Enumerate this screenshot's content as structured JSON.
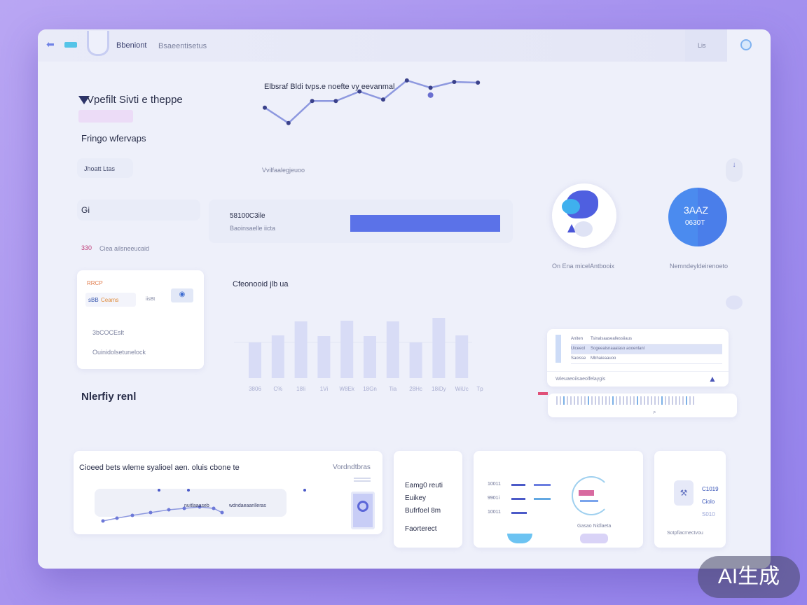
{
  "header": {
    "back_icon": "arrow-left-icon",
    "brand": "Bbeniont",
    "nav_label": "Bsaeentisetus",
    "right_label": "Lis",
    "avatar_icon": "user-circle-icon"
  },
  "left_panel": {
    "title": "Vpefilt Sivti e theppe",
    "subtitle": "Fringo wfervaps",
    "filter_label": "Jhoatt Ltas",
    "stat_label": "Gi",
    "tag_value": "330",
    "tag_text": "Ciea ailsneeucaid"
  },
  "line_chart": {
    "title": "Elbsraf Bldi tvps.e noefte vy eevanmal",
    "footer": "Vvilfaalegjeuoo"
  },
  "progress": {
    "value_label": "58100C3ile",
    "caption": "Baoinsaelle iicta",
    "fill_percent": 100,
    "color": "#5b72e8"
  },
  "mini_card": {
    "badge": "RRCP",
    "row_label": "sBB",
    "row_accent": "Ceams",
    "row_small": "iisBt",
    "button_icon": "chat-icon",
    "item1": "3bCOCEslt",
    "item2": "Ouinidolsetunelock"
  },
  "section_label": "Nlerfiy renl",
  "bar_chart_title": "Cfeonooid jlb ua",
  "chart_data": [
    {
      "type": "line",
      "title": "Elbsraf Bldi tvps.e noefte vy eevanmal",
      "xlabel": "Vvilfaalegjeuoo",
      "x": [
        1,
        2,
        3,
        4,
        5,
        6,
        7,
        8,
        9,
        10
      ],
      "values": [
        46,
        25,
        55,
        55,
        68,
        57,
        83,
        73,
        81,
        80
      ],
      "extra_point": {
        "x": 8,
        "y": 63
      },
      "color": "#8d98df"
    },
    {
      "type": "bar",
      "title": "Cfeonooid jlb ua",
      "categories": [
        "3806",
        "C%",
        "18Ii",
        "1Vi",
        "W8Ek",
        "18Gn",
        "Tia",
        "28Hc",
        "18iDy",
        "WiUc"
      ],
      "values": [
        51,
        61,
        81,
        60,
        82,
        60,
        81,
        51,
        86,
        61
      ],
      "extra_tick": "Tp",
      "color": "#d8dcf6"
    }
  ],
  "donut_left": {
    "caption": "On Ena micelAntbooix"
  },
  "donut_right": {
    "value": "3AAZ",
    "sub": "0630T",
    "caption": "Nemndeyldeirenoeto",
    "color": "#4a88ef"
  },
  "table_card": {
    "rows": [
      {
        "k": "Aniten",
        "v": "Tsinalsaaseallessiiaus"
      },
      {
        "k": "Uiceeol",
        "v": "Sogeeaisnaaaiaso aooenlanl"
      },
      {
        "k": "Saoisse",
        "v": "Mbhaieaauoo"
      }
    ],
    "footer": "Wieuaeoiisaeolfelaygis",
    "icon": "mountain-icon"
  },
  "bottom": {
    "card1": {
      "title": "Cioeed bets wleme syalioel aen. oluis cbone te",
      "right_label": "Vordndtbras",
      "legend1": "nuitlaaaseb",
      "legend2": "wdndaeaanlleras",
      "icon": "shield-icon"
    },
    "card2": {
      "items": [
        "Eamg0 reuti",
        "Euikey",
        "Bufrfoel 8m",
        "Faorterect"
      ]
    },
    "card3": {
      "rows": [
        {
          "label": "10011"
        },
        {
          "label": "9901i"
        },
        {
          "label": "10011"
        }
      ],
      "caption": "Gasao Nidlaeta"
    },
    "card4": {
      "values": [
        "C1019",
        "Ciolo",
        "S010"
      ],
      "caption": "Sotpfiacmectvou",
      "icon": "tool-icon"
    }
  },
  "watermark": "AI生成"
}
